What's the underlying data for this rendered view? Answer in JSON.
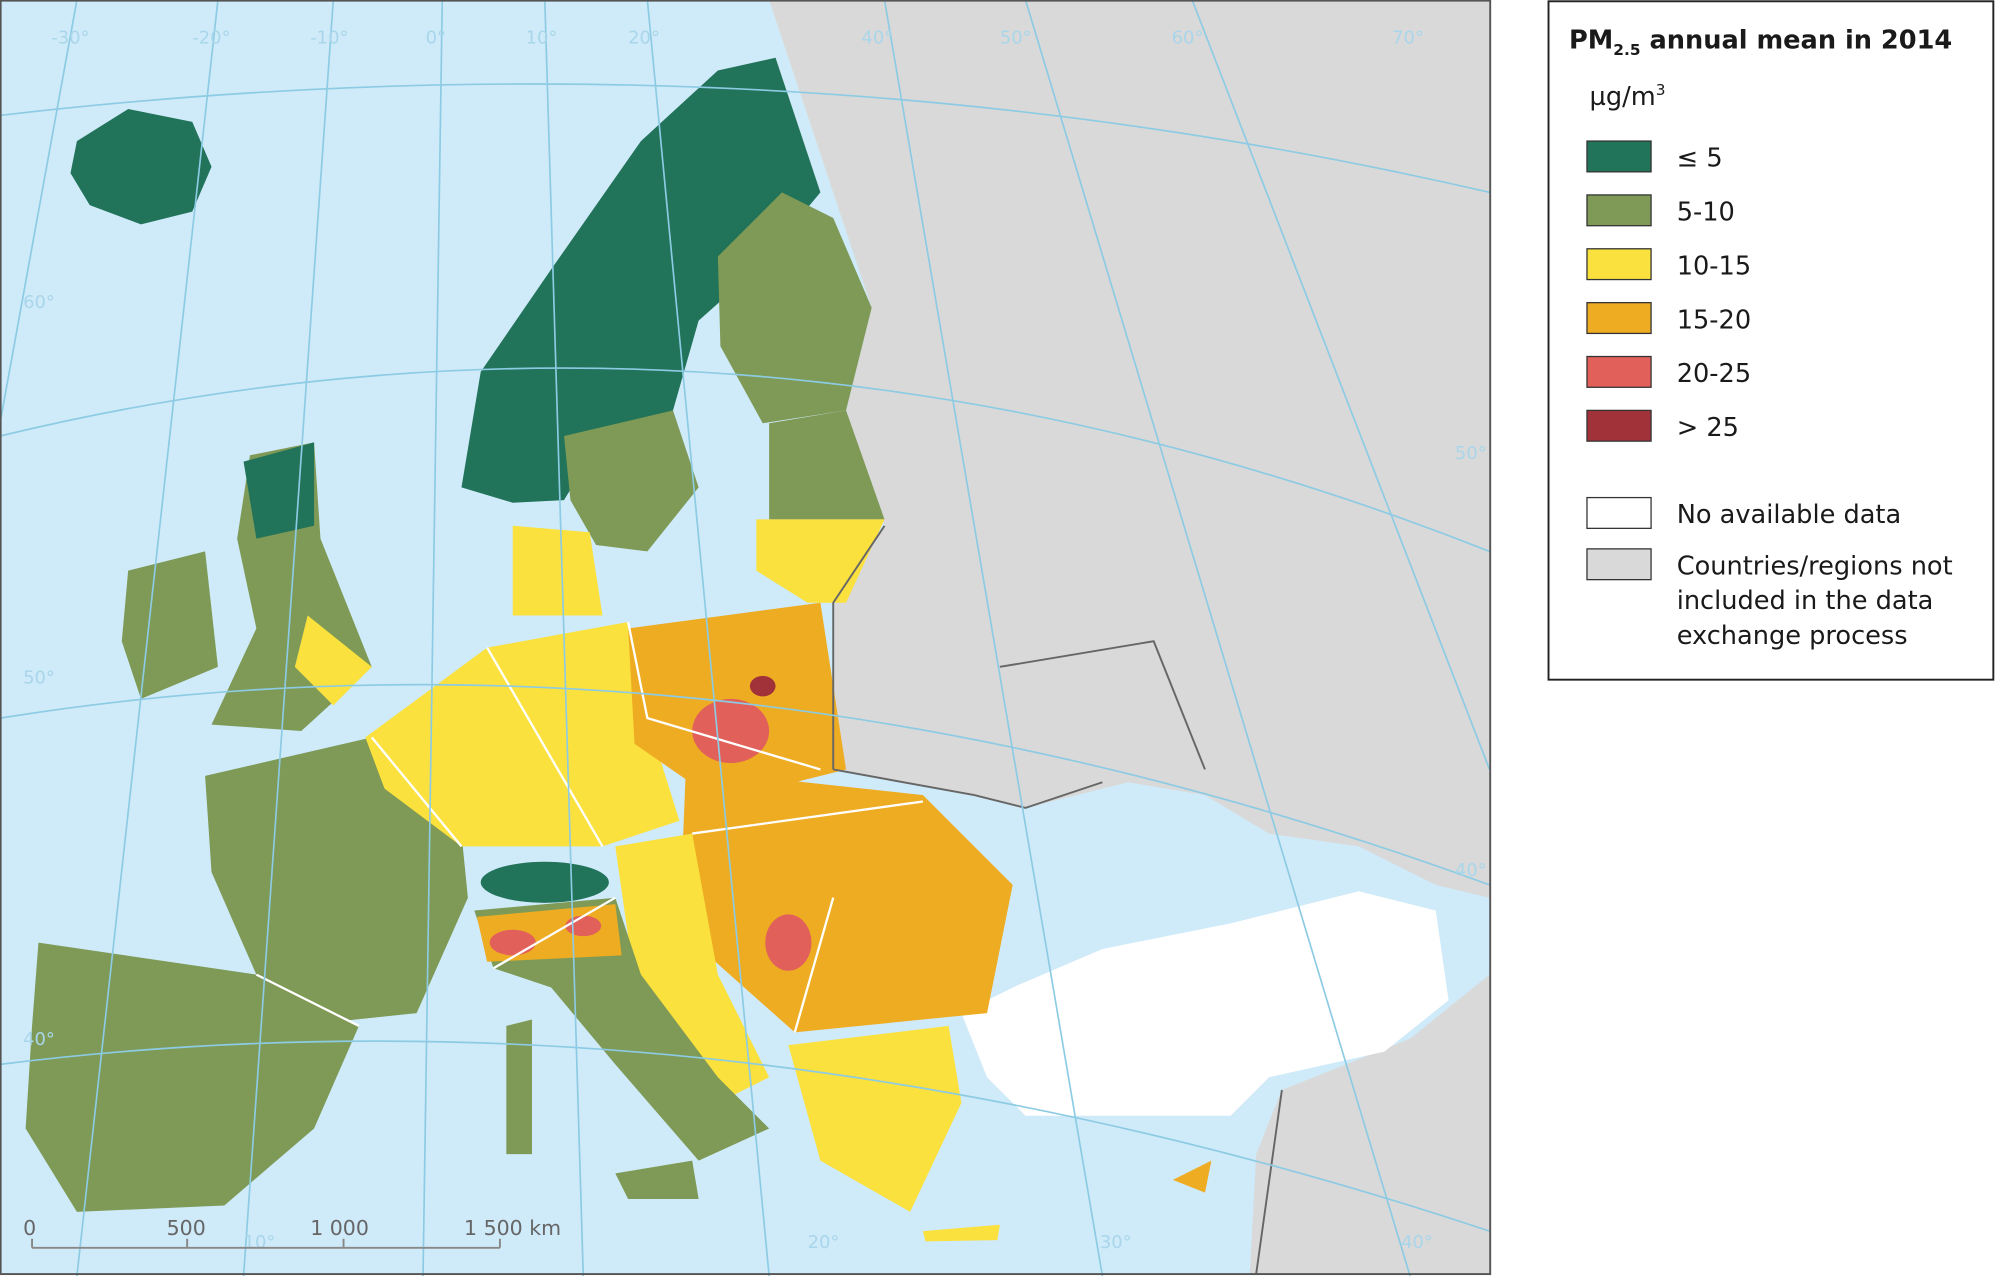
{
  "map": {
    "graticule_labels": {
      "top": [
        "-30°",
        "-20°",
        "-10°",
        "0°",
        "10°",
        "20°",
        "40°",
        "50°",
        "60°",
        "70°"
      ],
      "left": [
        "60°",
        "50°",
        "40°"
      ],
      "right": [
        "50°",
        "40°"
      ],
      "bottom": [
        "10°",
        "20°",
        "30°",
        "40°"
      ]
    },
    "scale_bar": {
      "ticks": [
        "0",
        "500",
        "1 000",
        "1 500 km"
      ]
    }
  },
  "legend": {
    "title": {
      "main": "PM",
      "subscript": "2.5",
      "rest": " annual mean in 2014"
    },
    "unit": {
      "base": "µg/m",
      "superscript": "3"
    },
    "classes": [
      {
        "label": "≤ 5",
        "color": "#21735a"
      },
      {
        "label": "5-10",
        "color": "#7e9a56"
      },
      {
        "label": "10-15",
        "color": "#fbe13d"
      },
      {
        "label": "15-20",
        "color": "#eeac22"
      },
      {
        "label": "20-25",
        "color": "#e2605a"
      },
      {
        "label": "> 25",
        "color": "#a1323a"
      }
    ],
    "other": [
      {
        "lines": [
          "No available data"
        ],
        "color": "#ffffff"
      },
      {
        "lines": [
          "Countries/regions not",
          "included in the data",
          "exchange process"
        ],
        "color": "#d9d9d9"
      }
    ]
  }
}
